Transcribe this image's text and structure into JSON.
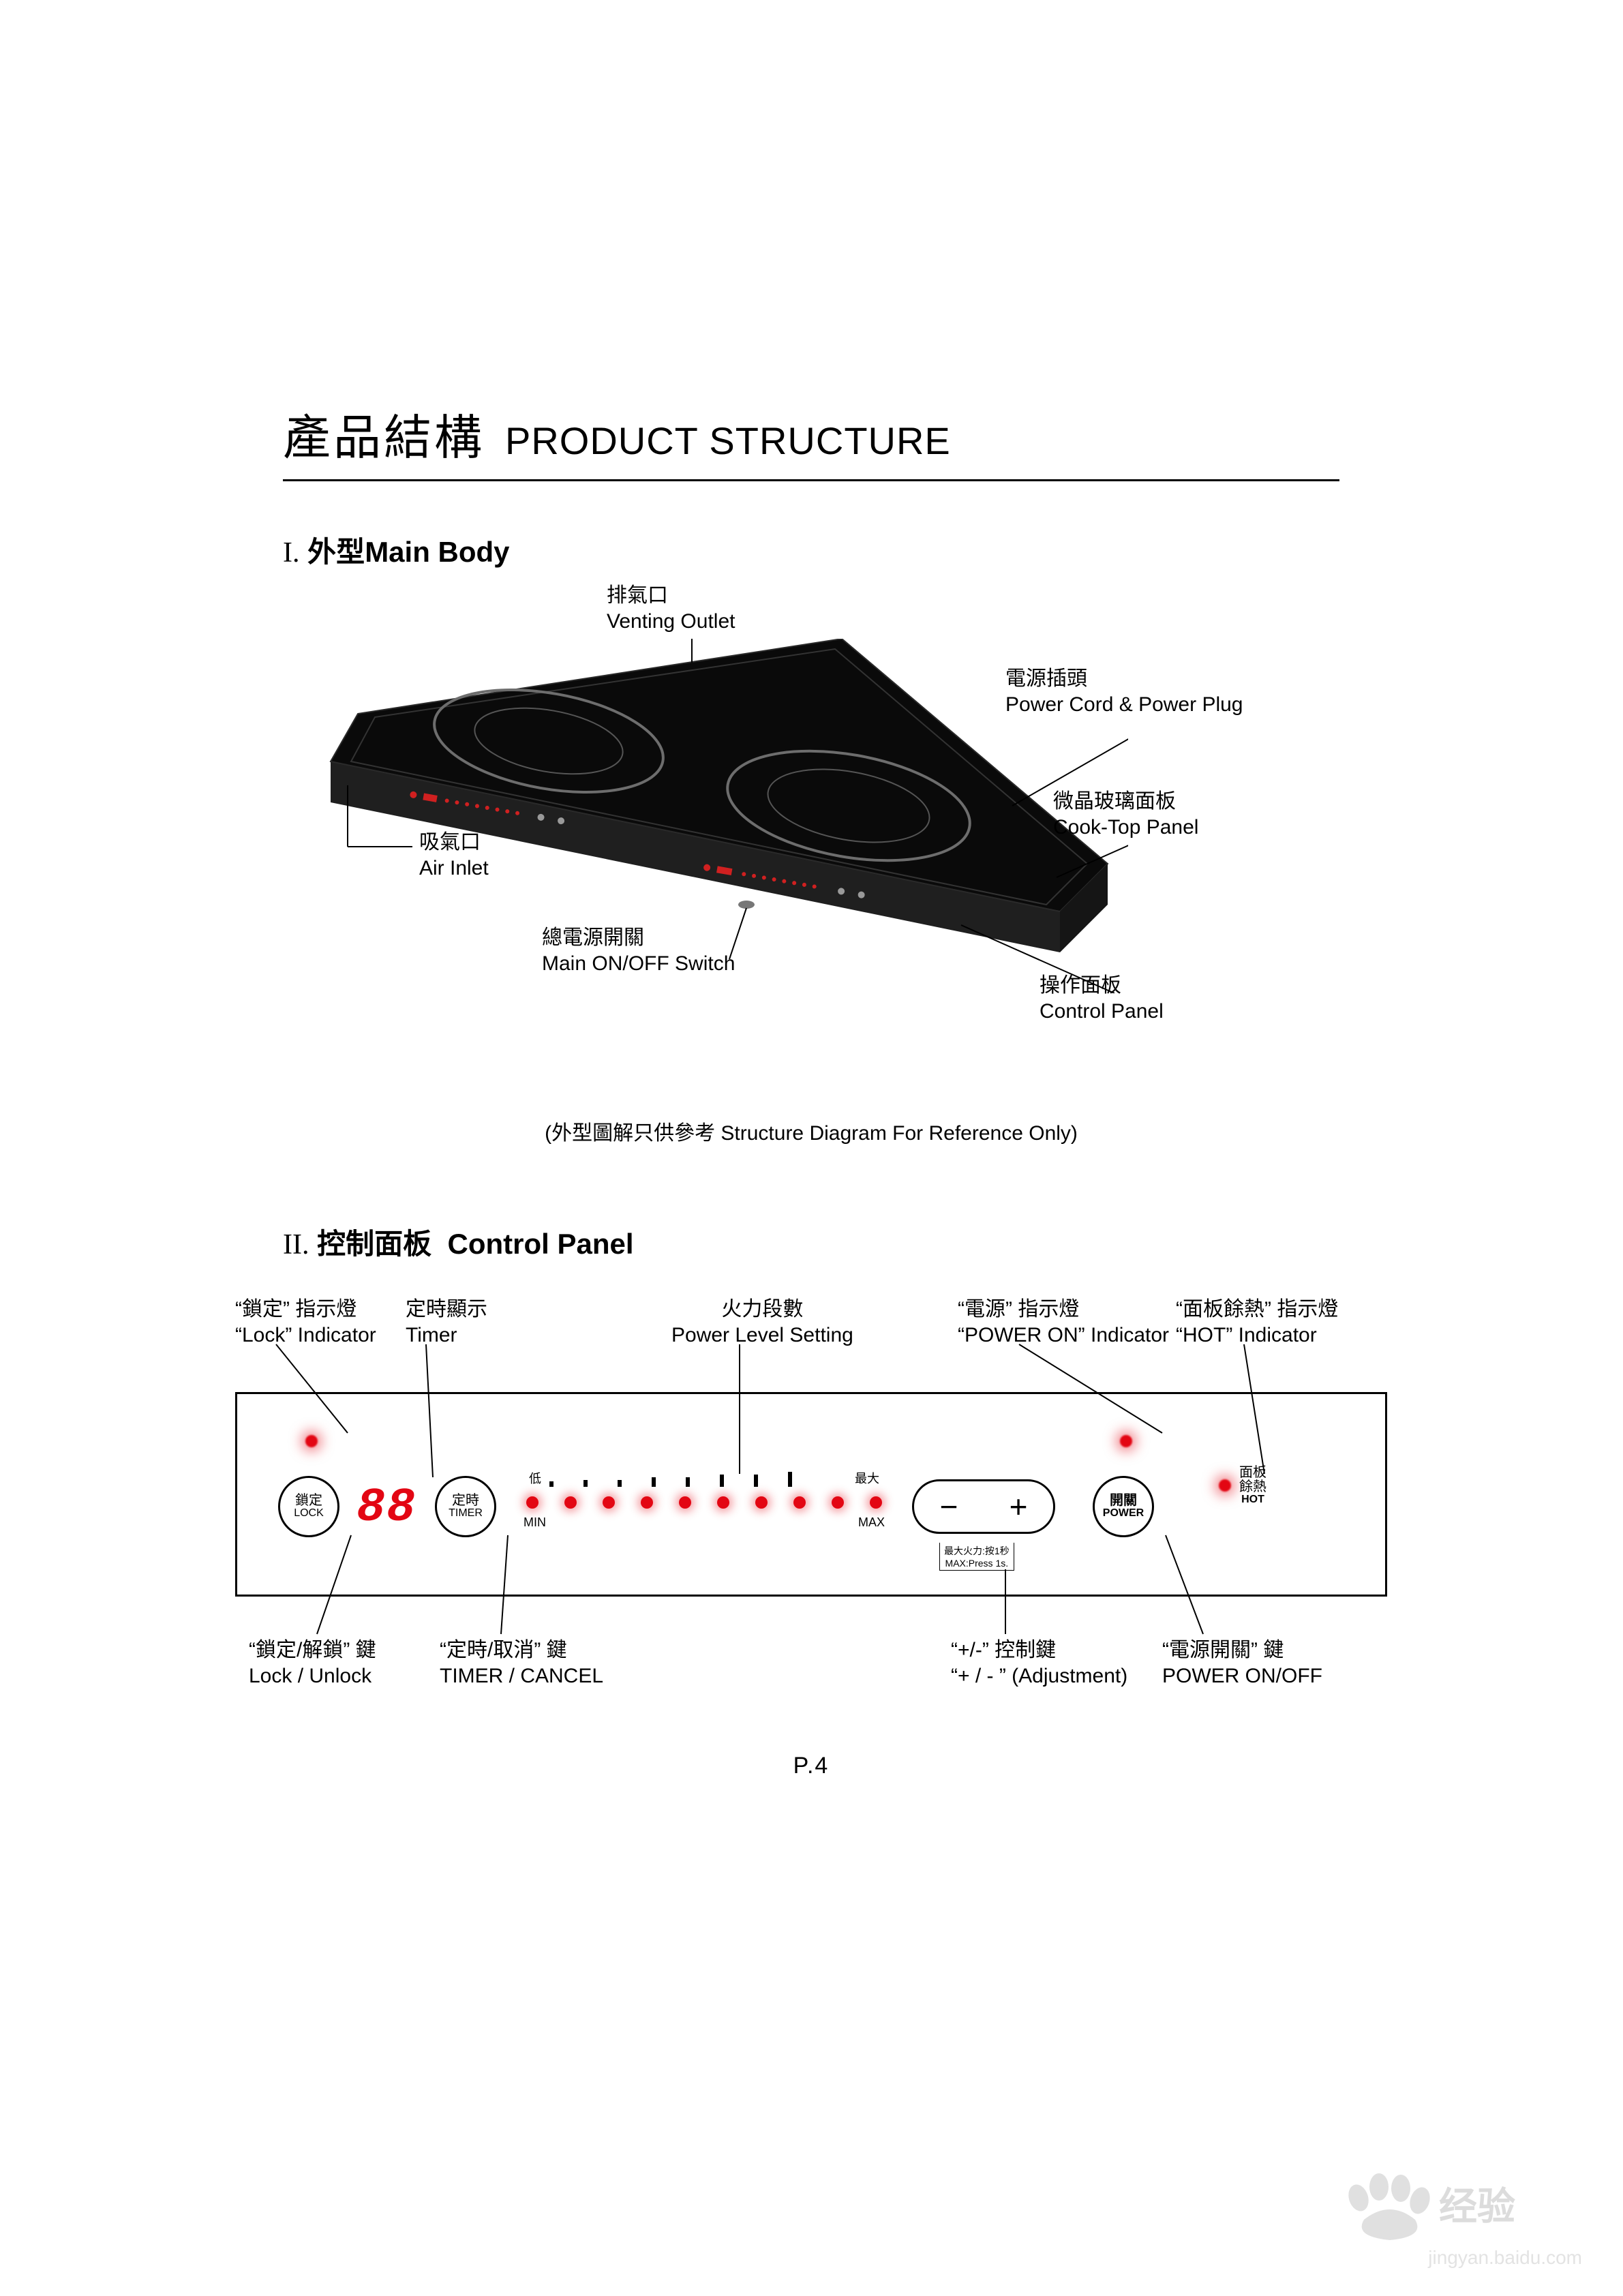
{
  "title": {
    "cn": "產品結構",
    "en": "PRODUCT STRUCTURE"
  },
  "section1": {
    "num": "I.",
    "cn": "外型",
    "en": "Main Body"
  },
  "section2": {
    "num": "II.",
    "cn": "控制面板",
    "en": "Control Panel"
  },
  "body_labels": {
    "vent": {
      "cn": "排氣口",
      "en": "Venting Outlet"
    },
    "plug": {
      "cn": "電源插頭",
      "en": "Power Cord & Power Plug"
    },
    "glass": {
      "cn": "微晶玻璃面板",
      "en": "Cook-Top Panel"
    },
    "inlet": {
      "cn": "吸氣口",
      "en": "Air Inlet"
    },
    "main": {
      "cn": "總電源開關",
      "en": "Main ON/OFF Switch"
    },
    "ctrl": {
      "cn": "操作面板",
      "en": "Control Panel"
    }
  },
  "ref_note": "(外型圖解只供參考 Structure Diagram For Reference Only)",
  "panel_top_labels": {
    "lock_led": {
      "cn": "“鎖定” 指示燈",
      "en": "“Lock” Indicator"
    },
    "timer": {
      "cn": "定時顯示",
      "en": "Timer"
    },
    "power_lv": {
      "cn": "火力段數",
      "en": "Power Level Setting"
    },
    "pwr_led": {
      "cn": "“電源” 指示燈",
      "en": "“POWER ON” Indicator"
    },
    "hot_led": {
      "cn": "“面板餘熱” 指示燈",
      "en": "“HOT” Indicator"
    }
  },
  "panel_bottom_labels": {
    "lock_btn": {
      "cn": "“鎖定/解鎖” 鍵",
      "en": "Lock / Unlock"
    },
    "timer_btn": {
      "cn": "“定時/取消” 鍵",
      "en": "TIMER / CANCEL"
    },
    "pm_btn": {
      "cn": "“+/-” 控制鍵",
      "en": "“+ / - ” (Adjustment)"
    },
    "pwr_btn": {
      "cn": "“電源開關” 鍵",
      "en": "POWER ON/OFF"
    }
  },
  "panel_buttons": {
    "lock": {
      "cn": "鎖定",
      "en": "LOCK"
    },
    "timer": {
      "cn": "定時",
      "en": "TIMER"
    },
    "power": {
      "cn": "開關",
      "en": "POWER"
    },
    "display": "88",
    "min_cn": "低",
    "max_cn": "最大",
    "min_en": "MIN",
    "max_en": "MAX",
    "hot_cn1": "面板",
    "hot_cn2": "餘熱",
    "hot_en": "HOT",
    "max_note": "最大火力:按1秒\nMAX:Press 1s."
  },
  "led_color": "#e30613",
  "scale_levels": 10,
  "scale_tick_heights": [
    8,
    8,
    10,
    10,
    14,
    14,
    18,
    18,
    22,
    26
  ],
  "page_number": "P.4",
  "watermark": {
    "main": "Baidu 经验",
    "sub": "jingyan.baidu.com"
  },
  "cooktop": {
    "body_fill": "#0a0a0a",
    "side_fill": "#1f1f1f",
    "ring_stroke": "#6d6d6d",
    "panel_text": "#d02020"
  }
}
